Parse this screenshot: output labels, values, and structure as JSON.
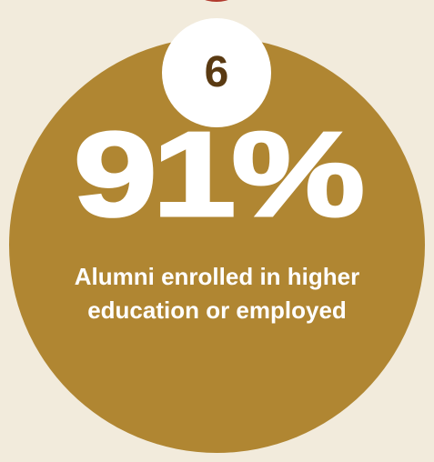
{
  "badge": {
    "number": "6"
  },
  "stat": {
    "value": "91%",
    "caption": "Alumni enrolled in higher education or employed"
  },
  "colors": {
    "background": "#f2ebdc",
    "circle": "#b08632",
    "badge": "#ffffff",
    "badge_text": "#5a3a12",
    "top_accent": "#b13a2d",
    "text": "#ffffff"
  }
}
